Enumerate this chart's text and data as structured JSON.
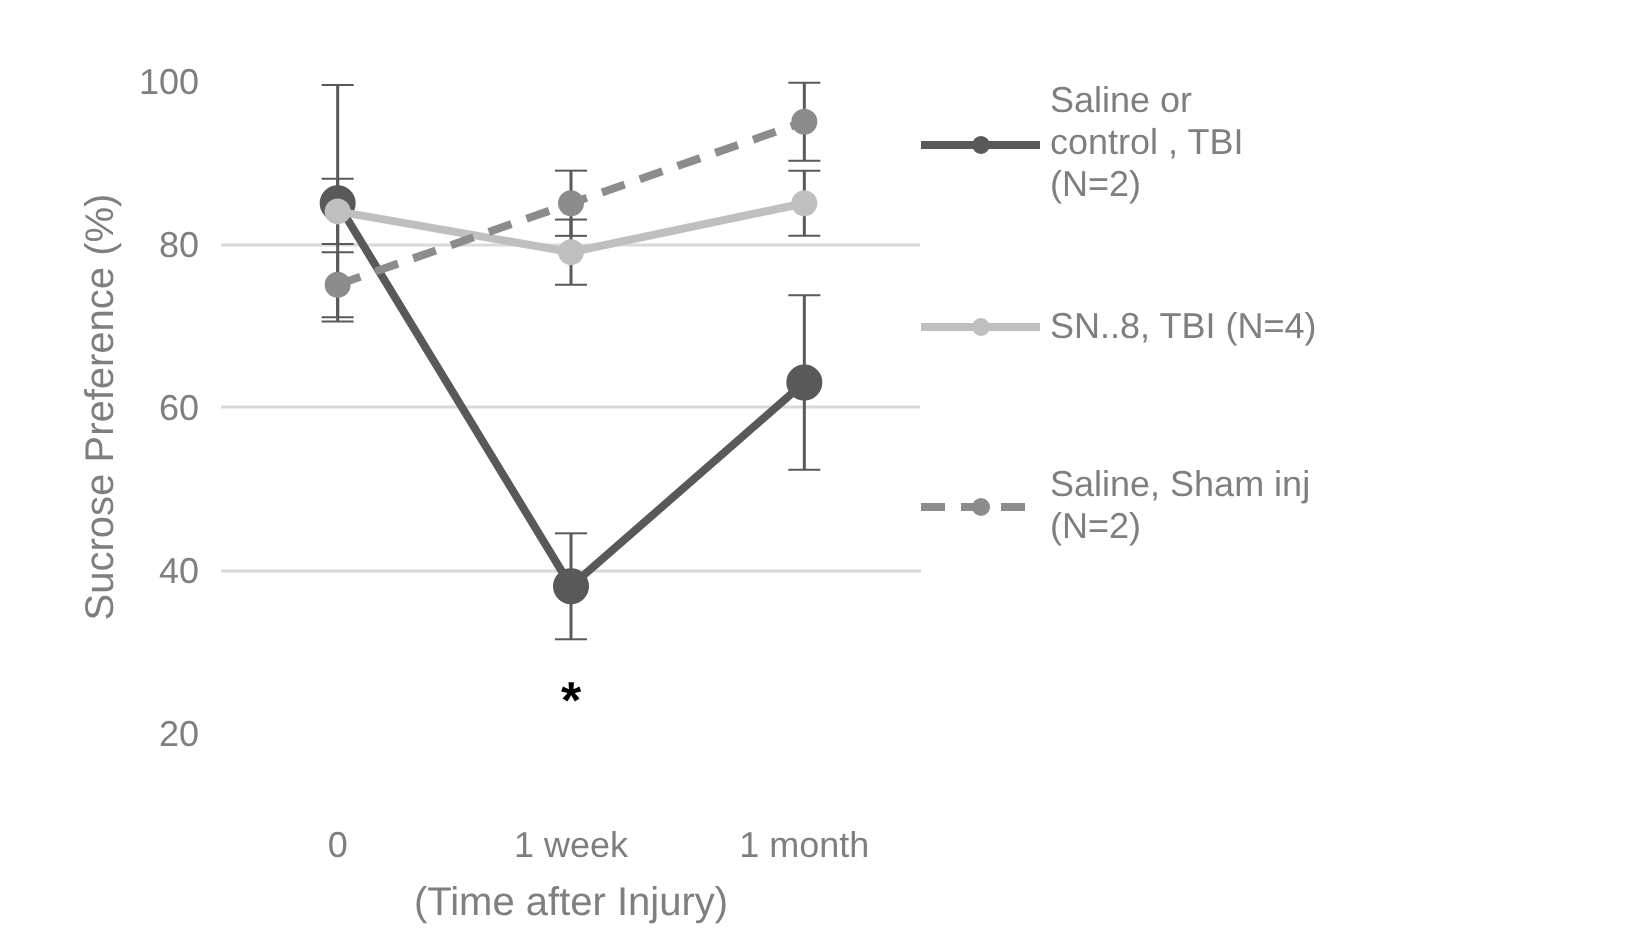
{
  "chart_data": {
    "type": "line",
    "ylabel": "Sucrose Preference (%)",
    "xlabel": "(Time after Injury)",
    "categories": [
      "0",
      "1 week",
      "1 month"
    ],
    "series": [
      {
        "name": "Saline or control , TBI (N=2)",
        "color": "#595959",
        "values": [
          85,
          38,
          63
        ],
        "errors": [
          14.5,
          6.5,
          10.7
        ],
        "line_style": "solid"
      },
      {
        "name": "SN..8, TBI (N=4)",
        "color": "#bfbfbf",
        "values": [
          84,
          79,
          85
        ],
        "errors": [
          4,
          4,
          4
        ],
        "line_style": "solid"
      },
      {
        "name": "Saline, Sham inj (N=2)",
        "color": "#8c8c8c",
        "values": [
          75,
          85,
          95
        ],
        "errors": [
          4,
          4,
          4.8
        ],
        "line_style": "dashed"
      }
    ],
    "annotations": [
      "*"
    ],
    "ylim": [
      20,
      100
    ],
    "yticks": [
      20,
      40,
      60,
      80,
      100
    ],
    "grid": "y",
    "legend": "right",
    "marker": "circle"
  }
}
